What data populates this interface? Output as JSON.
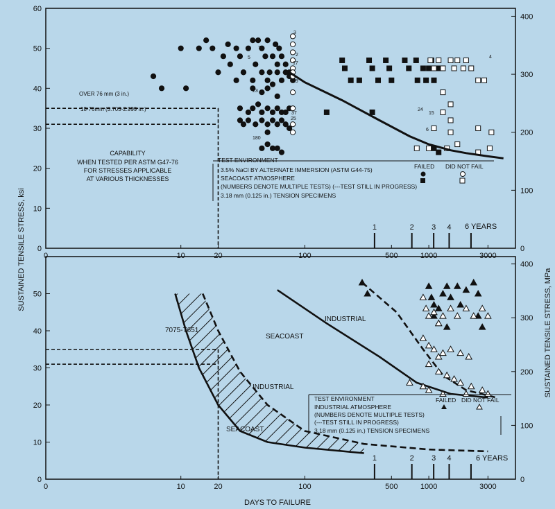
{
  "figure": {
    "y_title_left": "SUSTAINED TENSILE STRESS, ksi",
    "y_title_right": "SUSTAINED TENSILE STRESS, MPa",
    "x_title": "DAYS TO FAILURE"
  },
  "chart_data": [
    {
      "type": "scatter",
      "x_scale": "log",
      "xlim": [
        1,
        5000
      ],
      "ylim": [
        0,
        60
      ],
      "ylim_right": [
        0,
        413.7
      ],
      "x_tick_labels": [
        "0",
        "10",
        "20",
        "100",
        "500",
        "1000",
        "3000"
      ],
      "y_tick_labels": [
        "0",
        "10",
        "20",
        "30",
        "40",
        "50",
        "60"
      ],
      "y_right_tick_labels": [
        "0",
        "100",
        "200",
        "300",
        "400"
      ],
      "thickness_labels": {
        "over": "OVER 76 mm (3 in.)",
        "range": "18-76mm (3.703-2.999 in.)"
      },
      "thresholds": [
        {
          "label": "OVER 76 mm (3 in.)",
          "y": 35,
          "x_end": 20
        },
        {
          "label": "18-76mm (3.703-2.999 in.)",
          "y": 31,
          "x_end": 20
        }
      ],
      "capability_text": [
        "CAPABILITY",
        "WHEN TESTED PER ASTM G47-76",
        "FOR STRESSES APPLICABLE",
        "AT VARIOUS THICKNESSES"
      ],
      "test_env": {
        "title": "TEST ENVIRONMENT",
        "lines": [
          "3.5% NaCl BY ALTERNATE IMMERSION (ASTM G44-75)",
          "SEACOAST ATMOSPHERE",
          "(NUMBERS DENOTE MULTIPLE TESTS) (---TEST STILL IN PROGRESS)",
          "3.18 mm (0.125 in.) TENSION SPECIMENS"
        ],
        "failed": "FAILED",
        "not_fail": "DID NOT FAIL"
      },
      "year_markers": {
        "labels": [
          "1",
          "2",
          "3",
          "4"
        ],
        "x": [
          365,
          730,
          1095,
          1460,
          2190
        ],
        "last_label": "6 YEARS"
      },
      "series": [
        {
          "name": "Seacoast atmosphere - failed",
          "marker": "square",
          "filled": true,
          "points": [
            [
              200,
              47
            ],
            [
              210,
              45
            ],
            [
              235,
              42
            ],
            [
              275,
              42
            ],
            [
              330,
              47
            ],
            [
              350,
              45
            ],
            [
              390,
              42
            ],
            [
              450,
              47
            ],
            [
              480,
              45
            ],
            [
              500,
              42
            ],
            [
              640,
              47
            ],
            [
              690,
              45
            ],
            [
              790,
              47
            ],
            [
              810,
              42
            ],
            [
              900,
              45
            ],
            [
              950,
              42
            ],
            [
              1000,
              45
            ],
            [
              1050,
              47
            ],
            [
              1100,
              42
            ],
            [
              1150,
              45
            ],
            [
              1200,
              45
            ],
            [
              150,
              34
            ],
            [
              350,
              34
            ],
            [
              1100,
              25
            ],
            [
              1200,
              24
            ]
          ]
        },
        {
          "name": "Seacoast atmosphere - did not fail",
          "marker": "square",
          "filled": false,
          "points": [
            [
              1030,
              47
            ],
            [
              1100,
              45
            ],
            [
              1200,
              47
            ],
            [
              1300,
              45
            ],
            [
              1500,
              47
            ],
            [
              1600,
              45
            ],
            [
              1700,
              47
            ],
            [
              1900,
              45
            ],
            [
              2000,
              47
            ],
            [
              2200,
              45
            ],
            [
              2500,
              42
            ],
            [
              2800,
              42
            ],
            [
              1300,
              39
            ],
            [
              1500,
              36
            ],
            [
              1300,
              34
            ],
            [
              1500,
              32
            ],
            [
              1100,
              30
            ],
            [
              1500,
              29
            ],
            [
              2500,
              30
            ],
            [
              3200,
              29
            ],
            [
              1000,
              25
            ],
            [
              1400,
              25
            ],
            [
              1700,
              26
            ],
            [
              2500,
              24
            ],
            [
              3100,
              25
            ],
            [
              800,
              25
            ]
          ]
        },
        {
          "name": "Alternate immersion - failed",
          "marker": "circle",
          "filled": true,
          "points": [
            [
              6,
              43
            ],
            [
              7,
              40
            ],
            [
              10,
              50
            ],
            [
              11,
              40
            ],
            [
              14,
              50
            ],
            [
              16,
              52
            ],
            [
              18,
              50
            ],
            [
              20,
              44
            ],
            [
              22,
              48
            ],
            [
              24,
              51
            ],
            [
              25,
              46
            ],
            [
              28,
              50
            ],
            [
              30,
              48
            ],
            [
              32,
              44
            ],
            [
              35,
              50
            ],
            [
              38,
              52
            ],
            [
              40,
              46
            ],
            [
              42,
              52
            ],
            [
              45,
              50
            ],
            [
              48,
              48
            ],
            [
              50,
              52
            ],
            [
              52,
              44
            ],
            [
              55,
              48
            ],
            [
              58,
              51
            ],
            [
              60,
              46
            ],
            [
              62,
              50
            ],
            [
              65,
              48
            ],
            [
              70,
              46
            ],
            [
              75,
              44
            ],
            [
              80,
              47
            ],
            [
              28,
              42
            ],
            [
              32,
              44
            ],
            [
              38,
              42
            ],
            [
              45,
              44
            ],
            [
              50,
              42
            ],
            [
              55,
              41
            ],
            [
              60,
              44
            ],
            [
              65,
              42
            ],
            [
              70,
              44
            ],
            [
              75,
              43
            ],
            [
              80,
              42
            ],
            [
              38,
              40
            ],
            [
              45,
              39
            ],
            [
              50,
              40
            ],
            [
              60,
              38
            ],
            [
              30,
              35
            ],
            [
              35,
              34
            ],
            [
              38,
              35
            ],
            [
              42,
              36
            ],
            [
              45,
              34
            ],
            [
              50,
              35
            ],
            [
              55,
              34
            ],
            [
              60,
              35
            ],
            [
              65,
              34
            ],
            [
              70,
              34
            ],
            [
              75,
              35
            ],
            [
              30,
              32
            ],
            [
              32,
              31
            ],
            [
              35,
              32
            ],
            [
              40,
              31
            ],
            [
              45,
              32
            ],
            [
              50,
              31
            ],
            [
              55,
              32
            ],
            [
              60,
              31
            ],
            [
              65,
              32
            ],
            [
              70,
              31
            ],
            [
              75,
              30
            ],
            [
              50,
              29
            ],
            [
              45,
              25
            ],
            [
              50,
              26
            ],
            [
              55,
              25
            ],
            [
              60,
              25
            ],
            [
              65,
              24
            ]
          ]
        },
        {
          "name": "Alternate immersion - did not fail",
          "marker": "circle",
          "filled": false,
          "points": [
            [
              80,
              53
            ],
            [
              80,
              51
            ],
            [
              80,
              49
            ],
            [
              80,
              47
            ],
            [
              80,
              45
            ],
            [
              80,
              44
            ],
            [
              80,
              43
            ],
            [
              80,
              39
            ],
            [
              80,
              35
            ],
            [
              80,
              31
            ],
            [
              80,
              29
            ]
          ]
        }
      ],
      "fit_line": {
        "x": [
          75,
          100,
          200,
          400,
          700,
          1000,
          1500,
          2000,
          3000,
          4000
        ],
        "y": [
          44,
          41.5,
          37,
          32,
          28,
          26,
          24.5,
          23.8,
          23,
          22.5
        ]
      },
      "point_labels": [
        "3",
        "5",
        "7",
        "2",
        "17",
        "19",
        "23",
        "37",
        "25",
        "180",
        "6",
        "12",
        "4",
        "24",
        "15"
      ]
    },
    {
      "type": "line",
      "x_scale": "log",
      "xlim": [
        1,
        5000
      ],
      "ylim": [
        0,
        60
      ],
      "ylim_right": [
        0,
        413.7
      ],
      "x_tick_labels": [
        "0",
        "10",
        "20",
        "100",
        "500",
        "1000",
        "3000"
      ],
      "y_tick_labels": [
        "0",
        "10",
        "20",
        "30",
        "40",
        "50"
      ],
      "y_right_tick_labels": [
        "0",
        "100",
        "200",
        "300",
        "400"
      ],
      "alloy_label": "7075-T651",
      "band_labels": {
        "industrial": "INDUSTRIAL",
        "seacoast": "SEACOAST"
      },
      "thresholds": [
        {
          "y": 35,
          "x_end": 20
        },
        {
          "y": 31,
          "x_end": 20
        }
      ],
      "series": [
        {
          "name": "INDUSTRIAL",
          "style": "dashed",
          "points": [
            [
              290,
              53
            ],
            [
              550,
              45
            ],
            [
              900,
              35
            ],
            [
              1300,
              28
            ],
            [
              2000,
              24
            ],
            [
              3500,
              22
            ]
          ]
        },
        {
          "name": "SEACOAST",
          "style": "solid",
          "points": [
            [
              60,
              51
            ],
            [
              150,
              42
            ],
            [
              400,
              33
            ],
            [
              800,
              26
            ],
            [
              1500,
              23
            ],
            [
              3000,
              22
            ]
          ]
        },
        {
          "name": "7075-T651 INDUSTRIAL",
          "style": "dashed",
          "points": [
            [
              15,
              50
            ],
            [
              20,
              40
            ],
            [
              30,
              29
            ],
            [
              50,
              20
            ],
            [
              100,
              13
            ],
            [
              300,
              9.5
            ],
            [
              1000,
              8
            ],
            [
              3000,
              7.5
            ]
          ]
        },
        {
          "name": "7075-T651 SEACOAST",
          "style": "solid",
          "points": [
            [
              9,
              50
            ],
            [
              11,
              40
            ],
            [
              14,
              30
            ],
            [
              20,
              20
            ],
            [
              30,
              13
            ],
            [
              50,
              10
            ],
            [
              100,
              8.5
            ],
            [
              300,
              7
            ]
          ]
        },
        {
          "name": "Industrial atmosphere - failed",
          "marker": "triangle",
          "filled": true,
          "points": [
            [
              290,
              53
            ],
            [
              320,
              50
            ],
            [
              1000,
              52
            ],
            [
              1050,
              49
            ],
            [
              1100,
              47
            ],
            [
              1200,
              46
            ],
            [
              1300,
              50
            ],
            [
              1400,
              52
            ],
            [
              1500,
              49
            ],
            [
              1700,
              52
            ],
            [
              1800,
              47
            ],
            [
              2000,
              51
            ],
            [
              2300,
              53
            ],
            [
              2500,
              50
            ],
            [
              1100,
              44
            ],
            [
              1200,
              42
            ],
            [
              1400,
              41
            ],
            [
              2500,
              44
            ],
            [
              2700,
              41
            ]
          ]
        },
        {
          "name": "Industrial atmosphere - did not fail",
          "marker": "triangle",
          "filled": false,
          "points": [
            [
              900,
              49
            ],
            [
              950,
              46
            ],
            [
              1000,
              44
            ],
            [
              1100,
              45
            ],
            [
              1200,
              42
            ],
            [
              1300,
              44
            ],
            [
              1500,
              46
            ],
            [
              1700,
              44
            ],
            [
              2000,
              46
            ],
            [
              2300,
              44
            ],
            [
              2700,
              46
            ],
            [
              3000,
              44
            ],
            [
              900,
              38
            ],
            [
              1000,
              36
            ],
            [
              1100,
              35
            ],
            [
              1200,
              33
            ],
            [
              1300,
              34
            ],
            [
              1500,
              35
            ],
            [
              1800,
              34
            ],
            [
              2100,
              33
            ],
            [
              1000,
              31
            ],
            [
              1200,
              29
            ],
            [
              1400,
              28
            ],
            [
              1600,
              27
            ],
            [
              1800,
              26
            ],
            [
              2200,
              25
            ],
            [
              2700,
              24
            ],
            [
              700,
              26
            ],
            [
              900,
              25
            ],
            [
              1000,
              24
            ],
            [
              1300,
              23
            ],
            [
              2000,
              23
            ],
            [
              3000,
              23
            ]
          ]
        }
      ],
      "test_env": {
        "title": "TEST ENVIRONMENT",
        "lines": [
          "INDUSTRIAL ATMOSPHERE",
          "(NUMBERS DENOTE MULTIPLE TESTS)",
          "(---TEST STILL IN PROGRESS)",
          "3.18 mm (0.125 in.) TENSION SPECIMENS"
        ],
        "failed": "FAILED",
        "not_fail": "DID NOT FAIL"
      },
      "year_markers": {
        "labels": [
          "1",
          "2",
          "3",
          "4"
        ],
        "x": [
          365,
          730,
          1095,
          1460,
          2190
        ],
        "last_label": "6 YEARS"
      }
    }
  ]
}
